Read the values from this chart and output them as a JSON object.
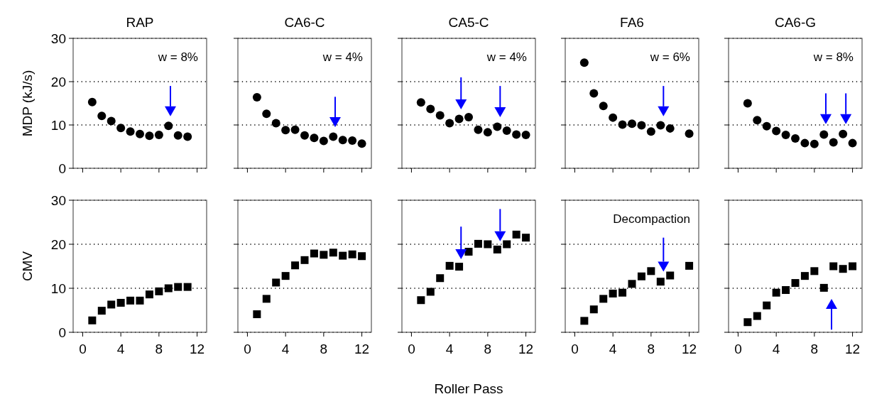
{
  "chart_data": [
    {
      "type": "scatter",
      "title": "RAP",
      "ylabel": "MDP (kJ/s)",
      "x": [
        1,
        2,
        3,
        4,
        5,
        6,
        7,
        8,
        9,
        10,
        11
      ],
      "series": [
        {
          "color": "#000000",
          "values": [
            15.3,
            12.1,
            10.9,
            9.3,
            8.5,
            7.9,
            7.5,
            7.7,
            9.8,
            7.6,
            7.3
          ]
        }
      ],
      "xlim": [
        -1,
        13
      ],
      "xticks": [
        0,
        4,
        8,
        12
      ],
      "ylim": [
        0,
        30
      ],
      "yticks": [
        0,
        10,
        20,
        30
      ],
      "grid": "y",
      "marker": "circle",
      "tick_labels": "y",
      "annotations": [
        "w = 8%"
      ]
    },
    {
      "type": "scatter",
      "title": "CA6-C",
      "x": [
        1,
        2,
        3,
        4,
        5,
        6,
        7,
        8,
        9,
        10,
        11,
        12
      ],
      "series": [
        {
          "color": "#000000",
          "values": [
            16.4,
            12.6,
            10.4,
            8.8,
            8.9,
            7.6,
            7.0,
            6.3,
            7.3,
            6.5,
            6.4,
            5.7
          ]
        }
      ],
      "xlim": [
        -1,
        13
      ],
      "xticks": [
        0,
        4,
        8,
        12
      ],
      "ylim": [
        0,
        30
      ],
      "yticks": [
        0,
        10,
        20,
        30
      ],
      "grid": "y",
      "marker": "circle",
      "tick_labels": false,
      "annotations": [
        "w = 4%"
      ]
    },
    {
      "type": "scatter",
      "title": "CA5-C",
      "x": [
        1,
        2,
        3,
        4,
        5,
        6,
        7,
        8,
        9,
        10,
        11,
        12
      ],
      "series": [
        {
          "color": "#000000",
          "values": [
            15.2,
            13.7,
            12.2,
            10.4,
            11.4,
            11.8,
            8.9,
            8.3,
            9.6,
            8.7,
            7.8,
            7.7
          ]
        }
      ],
      "xlim": [
        -1,
        13
      ],
      "xticks": [
        0,
        4,
        8,
        12
      ],
      "ylim": [
        0,
        30
      ],
      "yticks": [
        0,
        10,
        20,
        30
      ],
      "grid": "y",
      "marker": "circle",
      "tick_labels": false,
      "annotations": [
        "w = 4%"
      ]
    },
    {
      "type": "scatter",
      "title": "FA6",
      "x": [
        1,
        2,
        3,
        4,
        5,
        6,
        7,
        8,
        9,
        10,
        12
      ],
      "series": [
        {
          "color": "#000000",
          "values": [
            24.4,
            17.3,
            14.4,
            11.7,
            10.1,
            10.3,
            9.9,
            8.5,
            9.9,
            9.2,
            8.0
          ]
        }
      ],
      "xlim": [
        -1,
        13
      ],
      "xticks": [
        0,
        4,
        8,
        12
      ],
      "ylim": [
        0,
        30
      ],
      "yticks": [
        0,
        10,
        20,
        30
      ],
      "grid": "y",
      "marker": "circle",
      "tick_labels": false,
      "annotations": [
        "w = 6%"
      ]
    },
    {
      "type": "scatter",
      "title": "CA6-G",
      "x": [
        1,
        2,
        3,
        4,
        5,
        6,
        7,
        8,
        9,
        10,
        11,
        12
      ],
      "series": [
        {
          "color": "#000000",
          "values": [
            15.0,
            11.1,
            9.7,
            8.6,
            7.7,
            6.9,
            5.8,
            5.6,
            7.8,
            6.0,
            7.9,
            5.8
          ]
        }
      ],
      "xlim": [
        -1,
        13
      ],
      "xticks": [
        0,
        4,
        8,
        12
      ],
      "ylim": [
        0,
        30
      ],
      "yticks": [
        0,
        10,
        20,
        30
      ],
      "grid": "y",
      "marker": "circle",
      "tick_labels": false,
      "annotations": [
        "w = 8%"
      ]
    },
    {
      "type": "scatter",
      "ylabel": "CMV",
      "x": [
        1,
        2,
        3,
        4,
        5,
        6,
        7,
        8,
        9,
        10,
        11
      ],
      "series": [
        {
          "color": "#000000",
          "values": [
            2.7,
            4.9,
            6.3,
            6.7,
            7.2,
            7.2,
            8.6,
            9.3,
            10.0,
            10.3,
            10.3
          ]
        }
      ],
      "xlim": [
        -1,
        13
      ],
      "xticks": [
        0,
        4,
        8,
        12
      ],
      "ylim": [
        0,
        30
      ],
      "yticks": [
        0,
        10,
        20,
        30
      ],
      "grid": "y",
      "marker": "square"
    },
    {
      "type": "scatter",
      "x": [
        1,
        2,
        3,
        4,
        5,
        6,
        7,
        8,
        9,
        10,
        11,
        12
      ],
      "series": [
        {
          "color": "#000000",
          "values": [
            4.1,
            7.6,
            11.3,
            12.8,
            15.2,
            16.4,
            17.9,
            17.6,
            18.1,
            17.4,
            17.7,
            17.3
          ]
        }
      ],
      "xlim": [
        -1,
        13
      ],
      "xticks": [
        0,
        4,
        8,
        12
      ],
      "ylim": [
        0,
        30
      ],
      "yticks": [
        0,
        10,
        20,
        30
      ],
      "grid": "y",
      "marker": "square",
      "tick_labels": "x"
    },
    {
      "type": "scatter",
      "xlabel": "Roller Pass",
      "x": [
        1,
        2,
        3,
        4,
        5,
        6,
        7,
        8,
        9,
        10,
        11,
        12
      ],
      "series": [
        {
          "color": "#000000",
          "values": [
            7.3,
            9.2,
            12.3,
            15.1,
            14.9,
            18.3,
            20.1,
            20.0,
            18.8,
            20.0,
            22.2,
            21.5
          ]
        }
      ],
      "xlim": [
        -1,
        13
      ],
      "xticks": [
        0,
        4,
        8,
        12
      ],
      "ylim": [
        0,
        30
      ],
      "yticks": [
        0,
        10,
        20,
        30
      ],
      "grid": "y",
      "marker": "square",
      "tick_labels": "x"
    },
    {
      "type": "scatter",
      "x": [
        1,
        2,
        3,
        4,
        5,
        6,
        7,
        8,
        9,
        10,
        12
      ],
      "series": [
        {
          "color": "#000000",
          "values": [
            2.6,
            5.2,
            7.6,
            8.8,
            9.0,
            11.0,
            12.7,
            13.9,
            11.5,
            12.9,
            15.1
          ]
        }
      ],
      "xlim": [
        -1,
        13
      ],
      "xticks": [
        0,
        4,
        8,
        12
      ],
      "ylim": [
        0,
        30
      ],
      "yticks": [
        0,
        10,
        20,
        30
      ],
      "grid": "y",
      "marker": "square",
      "tick_labels": "x",
      "annotations": [
        "Decompaction"
      ]
    },
    {
      "type": "scatter",
      "x": [
        1,
        2,
        3,
        4,
        5,
        6,
        7,
        8,
        9,
        10,
        11,
        12
      ],
      "series": [
        {
          "color": "#000000",
          "values": [
            2.3,
            3.7,
            6.1,
            9.0,
            9.6,
            11.2,
            12.8,
            13.9,
            10.1,
            15.0,
            14.4,
            15.0
          ]
        }
      ],
      "xlim": [
        -1,
        13
      ],
      "xticks": [
        0,
        4,
        8,
        12
      ],
      "ylim": [
        0,
        30
      ],
      "yticks": [
        0,
        10,
        20,
        30
      ],
      "grid": "y",
      "marker": "square",
      "tick_labels": "x"
    }
  ]
}
